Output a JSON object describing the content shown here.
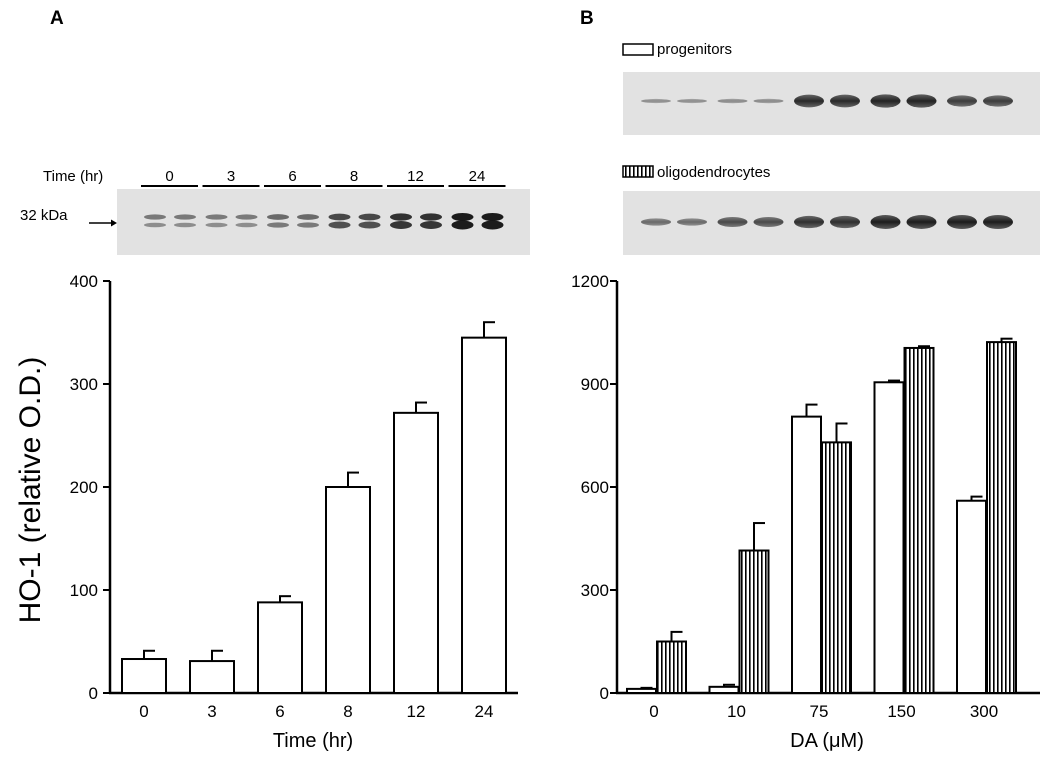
{
  "panels": {
    "a": {
      "letter": "A",
      "blot": {
        "row_title": "Time (hr)",
        "band_label": "32 kDa"
      }
    },
    "b": {
      "letter": "B",
      "blot": {
        "legend_progenitors": "progenitors",
        "legend_oligodendrocytes": "oligodendrocytes"
      }
    }
  },
  "colors": {
    "bar_fill": "#ffffff",
    "ink": "#000000",
    "blot_bg": "#e2e2e2"
  },
  "chart_data": [
    {
      "panel": "A",
      "type": "bar",
      "xlabel": "Time (hr)",
      "ylabel": "HO-1 (relative O.D.)",
      "categories": [
        "0",
        "3",
        "6",
        "8",
        "12",
        "24"
      ],
      "values": [
        33,
        31,
        88,
        200,
        272,
        345
      ],
      "errors": [
        8,
        10,
        6,
        14,
        10,
        15
      ],
      "ylim": [
        0,
        400
      ],
      "yticks": [
        0,
        100,
        200,
        300,
        400
      ],
      "fill": "open",
      "grid": false
    },
    {
      "panel": "B",
      "type": "bar",
      "xlabel": "DA (μM)",
      "categories": [
        "0",
        "10",
        "75",
        "150",
        "300"
      ],
      "ylim": [
        0,
        1200
      ],
      "yticks": [
        0,
        300,
        600,
        900,
        1200
      ],
      "grid": false,
      "series": [
        {
          "name": "progenitors",
          "fill": "open",
          "values": [
            12,
            18,
            805,
            905,
            560
          ],
          "errors": [
            3,
            6,
            35,
            5,
            12
          ]
        },
        {
          "name": "oligodendrocytes",
          "fill": "vertical-stripes",
          "values": [
            150,
            415,
            730,
            1005,
            1022
          ],
          "errors": [
            28,
            80,
            55,
            5,
            10
          ]
        }
      ]
    }
  ]
}
